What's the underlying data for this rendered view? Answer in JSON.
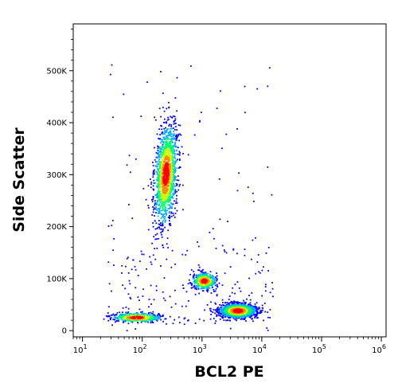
{
  "chart_data": {
    "type": "scatter",
    "subtype": "flow-cytometry-density-dot-plot",
    "xlabel": "BCL2 PE",
    "ylabel": "Side Scatter",
    "x_scale": "log",
    "xlim": [
      7,
      1200000
    ],
    "ylim": [
      -12000,
      590000
    ],
    "x_ticks": [
      {
        "value": 10,
        "base": "10",
        "exp": "1"
      },
      {
        "value": 100,
        "base": "10",
        "exp": "2"
      },
      {
        "value": 1000,
        "base": "10",
        "exp": "3"
      },
      {
        "value": 10000,
        "base": "10",
        "exp": "4"
      },
      {
        "value": 100000,
        "base": "10",
        "exp": "5"
      },
      {
        "value": 1000000,
        "base": "10",
        "exp": "6"
      }
    ],
    "y_ticks": [
      {
        "value": 0,
        "label": "0"
      },
      {
        "value": 100000,
        "label": "100K"
      },
      {
        "value": 200000,
        "label": "200K"
      },
      {
        "value": 300000,
        "label": "300K"
      },
      {
        "value": 400000,
        "label": "400K"
      },
      {
        "value": 500000,
        "label": "500K"
      }
    ],
    "grid": false,
    "color_scale": [
      "#0000ff",
      "#00aaff",
      "#00ff66",
      "#ccff00",
      "#ff8800",
      "#ff0000"
    ],
    "populations": [
      {
        "x_center": 250,
        "y_center": 300000,
        "x_spread_decades": 0.09,
        "y_spread": 85000,
        "tilt": 0.3,
        "density": "high"
      },
      {
        "x_center": 1100,
        "y_center": 95000,
        "x_spread_decades": 0.1,
        "y_spread": 14000,
        "tilt": 0,
        "density": "medium"
      },
      {
        "x_center": 4000,
        "y_center": 38000,
        "x_spread_decades": 0.15,
        "y_spread": 12000,
        "tilt": 0,
        "density": "high"
      },
      {
        "x_center": 80,
        "y_center": 25000,
        "x_spread_decades": 0.2,
        "y_spread": 8000,
        "tilt": 0,
        "density": "medium"
      }
    ]
  }
}
